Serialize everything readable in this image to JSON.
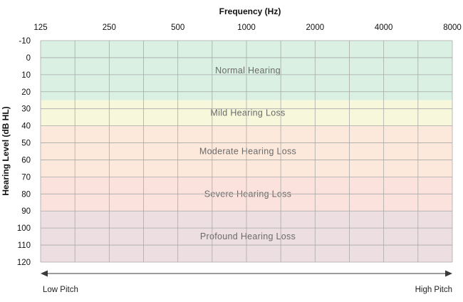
{
  "chart_data": {
    "type": "heatmap",
    "title": "Frequency (Hz)",
    "xlabel": "Frequency (Hz)",
    "ylabel": "Hearing Level (dB HL)",
    "x_scale": "log2",
    "x_ticks": [
      125,
      250,
      500,
      1000,
      2000,
      4000,
      8000
    ],
    "x_tick_labels": [
      "125",
      "250",
      "500",
      "1000",
      "2000",
      "4000",
      "8000"
    ],
    "xlim": [
      125,
      8000
    ],
    "y_ticks": [
      -10,
      0,
      10,
      20,
      30,
      40,
      50,
      60,
      70,
      80,
      90,
      100,
      110,
      120
    ],
    "y_tick_labels": [
      "-10",
      "0",
      "10",
      "20",
      "30",
      "40",
      "50",
      "60",
      "70",
      "80",
      "90",
      "100",
      "110",
      "120"
    ],
    "ylim": [
      -10,
      120
    ],
    "y_inverted": true,
    "grid": true,
    "x_axis_position": "top",
    "bands": [
      {
        "label": "Normal Hearing",
        "from": -10,
        "to": 25,
        "color": "#d9f0e2"
      },
      {
        "label": "Mild Hearing Loss",
        "from": 25,
        "to": 40,
        "color": "#f6f7db"
      },
      {
        "label": "Moderate Hearing Loss",
        "from": 40,
        "to": 70,
        "color": "#fde9dc"
      },
      {
        "label": "Severe Hearing Loss",
        "from": 70,
        "to": 90,
        "color": "#fbe2dc"
      },
      {
        "label": "Profound Hearing Loss",
        "from": 90,
        "to": 120,
        "color": "#eddfe1"
      }
    ],
    "pitch_axis": {
      "left": "Low Pitch",
      "right": "High Pitch"
    }
  },
  "colors": {
    "grid": "#a9a9a9",
    "arrow": "#3a3a3a"
  }
}
